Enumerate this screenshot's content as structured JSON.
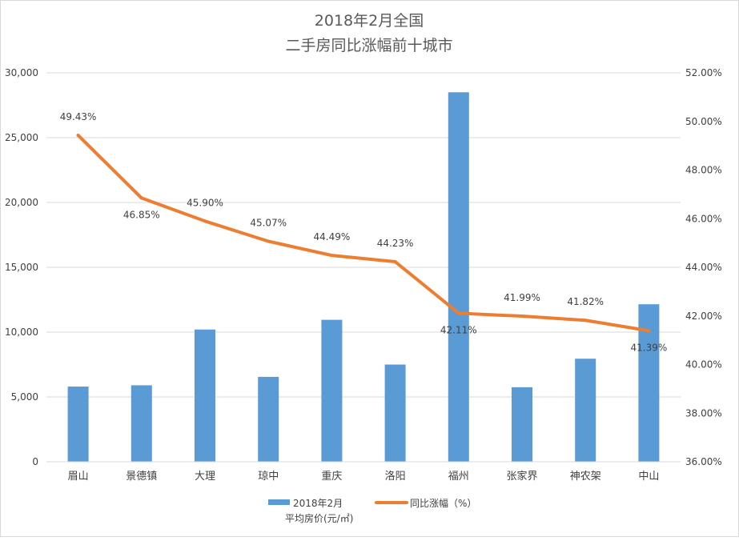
{
  "chart_data": {
    "type": "bar+line",
    "title": [
      "2018年2月全国",
      "二手房同比涨幅前十城市"
    ],
    "categories": [
      "眉山",
      "景德镇",
      "大理",
      "琼中",
      "重庆",
      "洛阳",
      "福州",
      "张家界",
      "神农架",
      "中山"
    ],
    "series": [
      {
        "name": "2018年2月平均房价(元/㎡)",
        "name_lines": [
          "2018年2月",
          "平均房价(元/㎡)"
        ],
        "type": "bar",
        "axis": "left",
        "color": "#5b9bd5",
        "values": [
          5800,
          5900,
          10200,
          6550,
          10950,
          7500,
          28500,
          5750,
          7950,
          12150
        ]
      },
      {
        "name": "同比涨幅（%）",
        "type": "line",
        "axis": "right",
        "color": "#ed7d31",
        "values": [
          49.43,
          46.85,
          45.9,
          45.07,
          44.49,
          44.23,
          42.11,
          41.99,
          41.82,
          41.39
        ],
        "data_labels": [
          "49.43%",
          "46.85%",
          "45.90%",
          "45.07%",
          "44.49%",
          "44.23%",
          "42.11%",
          "41.99%",
          "41.82%",
          "41.39%"
        ]
      }
    ],
    "y_left": {
      "range": [
        0,
        30000
      ],
      "ticks": [
        0,
        5000,
        10000,
        15000,
        20000,
        25000,
        30000
      ],
      "tick_labels": [
        "0",
        "5,000",
        "10,000",
        "15,000",
        "20,000",
        "25,000",
        "30,000"
      ]
    },
    "y_right": {
      "range": [
        36,
        52
      ],
      "ticks": [
        36,
        38,
        40,
        42,
        44,
        46,
        48,
        50,
        52
      ],
      "tick_labels": [
        "36.00%",
        "38.00%",
        "40.00%",
        "42.00%",
        "44.00%",
        "46.00%",
        "48.00%",
        "50.00%",
        "52.00%"
      ]
    },
    "grid": true,
    "legend_position": "bottom"
  }
}
